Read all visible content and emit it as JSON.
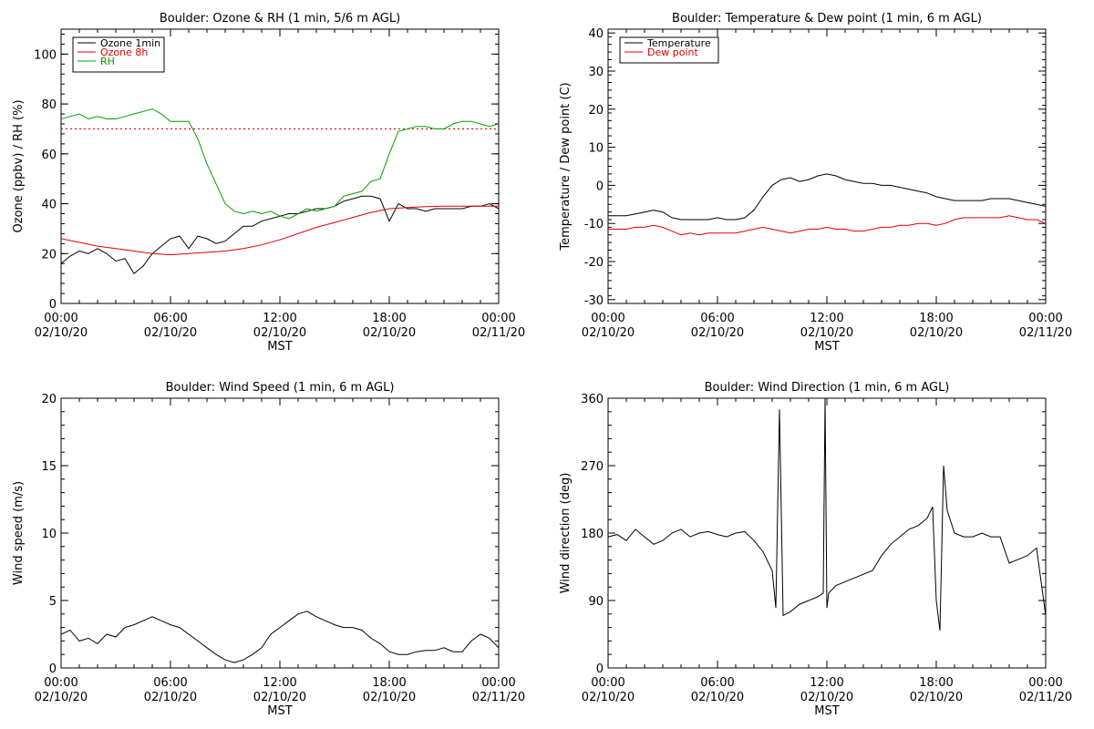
{
  "chart_data": [
    {
      "type": "line",
      "title": "Boulder: Ozone & RH (1 min, 5/6 m AGL)",
      "xlabel": "MST",
      "ylabel": "Ozone (ppbv) / RH (%)",
      "xlim": [
        0,
        24
      ],
      "ylim": [
        0,
        110
      ],
      "yticks": [
        0,
        20,
        40,
        60,
        80,
        100
      ],
      "xtick_labels": [
        {
          "time": "00:00",
          "date": "02/10/20"
        },
        {
          "time": "06:00",
          "date": "02/10/20"
        },
        {
          "time": "12:00",
          "date": "02/10/20"
        },
        {
          "time": "18:00",
          "date": "02/10/20"
        },
        {
          "time": "00:00",
          "date": "02/11/20"
        }
      ],
      "legend": "top-left",
      "reference_line": {
        "y": 70,
        "color": "#e00000",
        "style": "dotted"
      },
      "series": [
        {
          "name": "Ozone 1min",
          "color": "#000000",
          "x": [
            0,
            0.5,
            1,
            1.5,
            2,
            2.5,
            3,
            3.5,
            4,
            4.5,
            5,
            5.5,
            6,
            6.5,
            7,
            7.5,
            8,
            8.5,
            9,
            9.5,
            10,
            10.5,
            11,
            11.5,
            12,
            12.5,
            13,
            13.5,
            14,
            14.5,
            15,
            15.5,
            16,
            16.5,
            17,
            17.5,
            18,
            18.5,
            19,
            19.5,
            20,
            20.5,
            21,
            21.5,
            22,
            22.5,
            23,
            23.5,
            24
          ],
          "values": [
            16,
            19,
            21,
            20,
            22,
            20,
            17,
            18,
            12,
            15,
            20,
            23,
            26,
            27,
            22,
            27,
            26,
            24,
            25,
            28,
            31,
            31,
            33,
            34,
            35,
            36,
            36,
            37,
            38,
            38,
            39,
            41,
            42,
            43,
            43,
            42,
            33,
            40,
            38,
            38,
            37,
            38,
            38,
            38,
            38,
            39,
            39,
            40,
            38
          ]
        },
        {
          "name": "Ozone 8h",
          "color": "#e00000",
          "x": [
            0,
            1,
            2,
            3,
            4,
            5,
            6,
            7,
            8,
            9,
            10,
            11,
            12,
            13,
            14,
            15,
            16,
            17,
            18,
            19,
            20,
            21,
            22,
            23,
            24
          ],
          "values": [
            26,
            24.5,
            23,
            22,
            21,
            20,
            19.5,
            20,
            20.5,
            21,
            22,
            23.5,
            25.5,
            28,
            30.5,
            32.5,
            34.5,
            36.5,
            38,
            38.5,
            38.8,
            39,
            39,
            39,
            39
          ]
        },
        {
          "name": "RH",
          "color": "#00a000",
          "x": [
            0,
            0.5,
            1,
            1.5,
            2,
            2.5,
            3,
            3.5,
            4,
            4.5,
            5,
            5.5,
            6,
            6.5,
            7,
            7.5,
            8,
            8.5,
            9,
            9.5,
            10,
            10.5,
            11,
            11.5,
            12,
            12.5,
            13,
            13.5,
            14,
            14.5,
            15,
            15.5,
            16,
            16.5,
            17,
            17.5,
            18,
            18.5,
            19,
            19.5,
            20,
            20.5,
            21,
            21.5,
            22,
            22.5,
            23,
            23.5,
            24
          ],
          "values": [
            74,
            75,
            76,
            74,
            75,
            74,
            74,
            75,
            76,
            77,
            78,
            76,
            73,
            73,
            73,
            66,
            56,
            48,
            40,
            37,
            36,
            37,
            36,
            37,
            35,
            34,
            36,
            38,
            37,
            38,
            39,
            43,
            44,
            45,
            49,
            50,
            60,
            69,
            70,
            71,
            71,
            70,
            70,
            72,
            73,
            73,
            72,
            71,
            72
          ]
        }
      ]
    },
    {
      "type": "line",
      "title": "Boulder: Temperature & Dew point (1 min, 6 m AGL)",
      "xlabel": "MST",
      "ylabel": "Temperature / Dew point (C)",
      "xlim": [
        0,
        24
      ],
      "ylim": [
        -31,
        41
      ],
      "yticks": [
        -30,
        -20,
        -10,
        0,
        10,
        20,
        30,
        40
      ],
      "xtick_labels": [
        {
          "time": "00:00",
          "date": "02/10/20"
        },
        {
          "time": "06:00",
          "date": "02/10/20"
        },
        {
          "time": "12:00",
          "date": "02/10/20"
        },
        {
          "time": "18:00",
          "date": "02/10/20"
        },
        {
          "time": "00:00",
          "date": "02/11/20"
        }
      ],
      "legend": "top-left",
      "series": [
        {
          "name": "Temperature",
          "color": "#000000",
          "x": [
            0,
            0.5,
            1,
            1.5,
            2,
            2.5,
            3,
            3.5,
            4,
            4.5,
            5,
            5.5,
            6,
            6.5,
            7,
            7.5,
            8,
            8.5,
            9,
            9.5,
            10,
            10.5,
            11,
            11.5,
            12,
            12.5,
            13,
            13.5,
            14,
            14.5,
            15,
            15.5,
            16,
            16.5,
            17,
            17.5,
            18,
            18.5,
            19,
            19.5,
            20,
            20.5,
            21,
            21.5,
            22,
            22.5,
            23,
            23.5,
            24
          ],
          "values": [
            -8,
            -8,
            -8,
            -7.5,
            -7,
            -6.5,
            -7,
            -8.5,
            -9,
            -9,
            -9,
            -9,
            -8.5,
            -9,
            -9,
            -8.5,
            -6.5,
            -3,
            0,
            1.5,
            2,
            1,
            1.5,
            2.5,
            3,
            2.5,
            1.5,
            1,
            0.5,
            0.5,
            0,
            0,
            -0.5,
            -1,
            -1.5,
            -2,
            -3,
            -3.5,
            -4,
            -4,
            -4,
            -4,
            -3.5,
            -3.5,
            -3.5,
            -4,
            -4.5,
            -5,
            -5.5
          ]
        },
        {
          "name": "Dew point",
          "color": "#e00000",
          "x": [
            0,
            0.5,
            1,
            1.5,
            2,
            2.5,
            3,
            3.5,
            4,
            4.5,
            5,
            5.5,
            6,
            6.5,
            7,
            7.5,
            8,
            8.5,
            9,
            9.5,
            10,
            10.5,
            11,
            11.5,
            12,
            12.5,
            13,
            13.5,
            14,
            14.5,
            15,
            15.5,
            16,
            16.5,
            17,
            17.5,
            18,
            18.5,
            19,
            19.5,
            20,
            20.5,
            21,
            21.5,
            22,
            22.5,
            23,
            23.5,
            24
          ],
          "values": [
            -11.5,
            -11.5,
            -11.5,
            -11,
            -11,
            -10.5,
            -11,
            -12,
            -13,
            -12.5,
            -13,
            -12.5,
            -12.5,
            -12.5,
            -12.5,
            -12,
            -11.5,
            -11,
            -11.5,
            -12,
            -12.5,
            -12,
            -11.5,
            -11.5,
            -11,
            -11.5,
            -11.5,
            -12,
            -12,
            -11.5,
            -11,
            -11,
            -10.5,
            -10.5,
            -10,
            -10,
            -10.5,
            -10,
            -9,
            -8.5,
            -8.5,
            -8.5,
            -8.5,
            -8.5,
            -8,
            -8.5,
            -9,
            -9,
            -10
          ]
        }
      ]
    },
    {
      "type": "line",
      "title": "Boulder: Wind Speed (1 min, 6 m AGL)",
      "xlabel": "MST",
      "ylabel": "Wind speed (m/s)",
      "xlim": [
        0,
        24
      ],
      "ylim": [
        0,
        20
      ],
      "yticks": [
        0,
        5,
        10,
        15,
        20
      ],
      "xtick_labels": [
        {
          "time": "00:00",
          "date": "02/10/20"
        },
        {
          "time": "06:00",
          "date": "02/10/20"
        },
        {
          "time": "12:00",
          "date": "02/10/20"
        },
        {
          "time": "18:00",
          "date": "02/10/20"
        },
        {
          "time": "00:00",
          "date": "02/11/20"
        }
      ],
      "series": [
        {
          "color": "#000000",
          "x": [
            0,
            0.5,
            1,
            1.5,
            2,
            2.5,
            3,
            3.5,
            4,
            4.5,
            5,
            5.5,
            6,
            6.5,
            7,
            7.5,
            8,
            8.5,
            9,
            9.5,
            10,
            10.5,
            11,
            11.5,
            12,
            12.5,
            13,
            13.5,
            14,
            14.5,
            15,
            15.5,
            16,
            16.5,
            17,
            17.5,
            18,
            18.5,
            19,
            19.5,
            20,
            20.5,
            21,
            21.5,
            22,
            22.5,
            23,
            23.5,
            24
          ],
          "values": [
            2.5,
            2.8,
            2,
            2.2,
            1.8,
            2.5,
            2.3,
            3,
            3.2,
            3.5,
            3.8,
            3.5,
            3.2,
            3,
            2.5,
            2,
            1.5,
            1,
            0.6,
            0.4,
            0.6,
            1,
            1.5,
            2.5,
            3,
            3.5,
            4,
            4.2,
            3.8,
            3.5,
            3.2,
            3,
            3,
            2.8,
            2.2,
            1.8,
            1.2,
            1,
            1,
            1.2,
            1.3,
            1.3,
            1.5,
            1.2,
            1.2,
            2,
            2.5,
            2.2,
            1.5
          ]
        }
      ]
    },
    {
      "type": "line",
      "title": "Boulder: Wind Direction (1 min, 6 m AGL)",
      "xlabel": "MST",
      "ylabel": "Wind direction (deg)",
      "xlim": [
        0,
        24
      ],
      "ylim": [
        0,
        360
      ],
      "yticks": [
        0,
        90,
        180,
        270,
        360
      ],
      "xtick_labels": [
        {
          "time": "00:00",
          "date": "02/10/20"
        },
        {
          "time": "06:00",
          "date": "02/10/20"
        },
        {
          "time": "12:00",
          "date": "02/10/20"
        },
        {
          "time": "18:00",
          "date": "02/10/20"
        },
        {
          "time": "00:00",
          "date": "02/11/20"
        }
      ],
      "series": [
        {
          "color": "#000000",
          "x": [
            0,
            0.5,
            1,
            1.5,
            2,
            2.5,
            3,
            3.5,
            4,
            4.5,
            5,
            5.5,
            6,
            6.5,
            7,
            7.5,
            8,
            8.5,
            9,
            9.2,
            9.4,
            9.6,
            10,
            10.5,
            11,
            11.5,
            11.8,
            11.9,
            12,
            12.1,
            12.5,
            13,
            13.5,
            14,
            14.5,
            15,
            15.5,
            16,
            16.5,
            17,
            17.5,
            17.8,
            18,
            18.2,
            18.4,
            18.6,
            19,
            19.5,
            20,
            20.5,
            21,
            21.5,
            22,
            22.5,
            23,
            23.5,
            24
          ],
          "values": [
            175,
            178,
            170,
            185,
            175,
            165,
            170,
            180,
            185,
            175,
            180,
            182,
            178,
            175,
            180,
            182,
            170,
            155,
            130,
            80,
            345,
            70,
            75,
            85,
            90,
            95,
            100,
            360,
            80,
            100,
            110,
            115,
            120,
            125,
            130,
            150,
            165,
            175,
            185,
            190,
            200,
            215,
            90,
            50,
            270,
            210,
            180,
            175,
            175,
            180,
            175,
            175,
            140,
            145,
            150,
            160,
            70
          ]
        }
      ]
    }
  ]
}
